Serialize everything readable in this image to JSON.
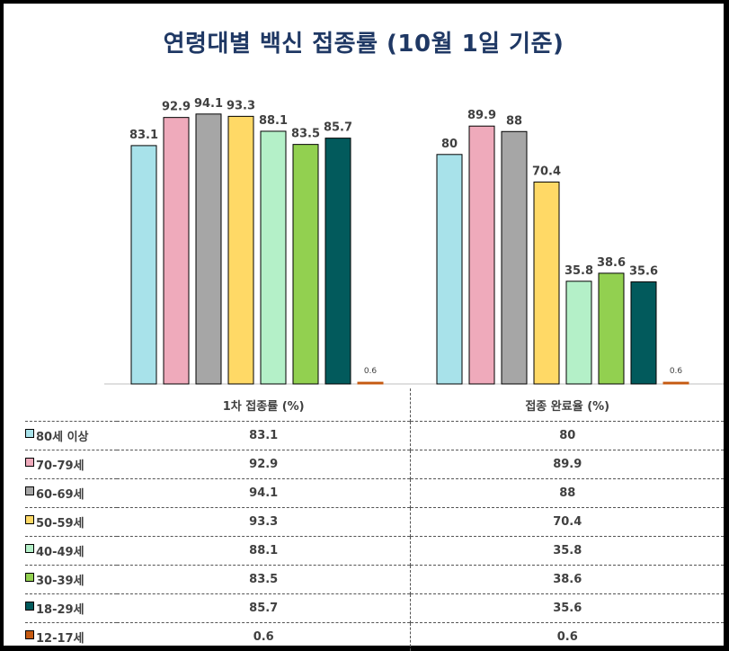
{
  "chart_data": {
    "type": "bar",
    "title": "연령대별 백신 접종률 (10월 1일 기준)",
    "groups": [
      "1차 접종률 (%)",
      "접종 완료율 (%)"
    ],
    "series": [
      {
        "name": "80세 이상",
        "color": "#a8e2ea",
        "values": [
          83.1,
          80
        ]
      },
      {
        "name": "70-79세",
        "color": "#efaabb",
        "values": [
          92.9,
          89.9
        ]
      },
      {
        "name": "60-69세",
        "color": "#a6a6a6",
        "values": [
          94.1,
          88
        ]
      },
      {
        "name": "50-59세",
        "color": "#ffd966",
        "values": [
          93.3,
          70.4
        ]
      },
      {
        "name": "40-49세",
        "color": "#b4f0c8",
        "values": [
          88.1,
          35.8
        ]
      },
      {
        "name": "30-39세",
        "color": "#92d050",
        "values": [
          83.5,
          38.6
        ]
      },
      {
        "name": "18-29세",
        "color": "#025a5c",
        "values": [
          85.7,
          35.6
        ]
      },
      {
        "name": "12-17세",
        "color": "#c55a11",
        "values": [
          0.6,
          0.6
        ]
      }
    ],
    "value_labels": [
      [
        "83.1",
        "80"
      ],
      [
        "92.9",
        "89.9"
      ],
      [
        "94.1",
        "88"
      ],
      [
        "93.3",
        "70.4"
      ],
      [
        "88.1",
        "35.8"
      ],
      [
        "83.5",
        "38.6"
      ],
      [
        "85.7",
        "35.6"
      ],
      [
        "0.6",
        "0.6"
      ]
    ],
    "ylim": [
      0,
      100
    ],
    "grid": false,
    "legend": "table-left"
  }
}
